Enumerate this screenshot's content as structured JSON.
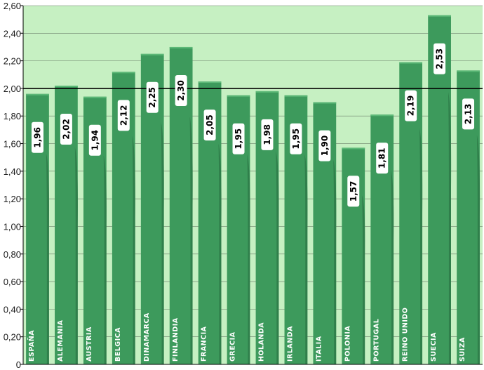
{
  "chart_data": {
    "type": "bar",
    "title": "",
    "xlabel": "",
    "ylabel": "",
    "categories": [
      "ESPAÑA",
      "ALEMANIA",
      "AUSTRIA",
      "BELGICA",
      "DINAMARCA",
      "FINLANDIA",
      "FRANCIA",
      "GRECIA",
      "HOLANDA",
      "IRLANDA",
      "ITALIA",
      "POLONIA",
      "PORTUGAL",
      "REINO UNIDO",
      "SUECIA",
      "SUIZA"
    ],
    "values": [
      1.96,
      2.02,
      1.94,
      2.12,
      2.25,
      2.3,
      2.05,
      1.95,
      1.98,
      1.95,
      1.9,
      1.57,
      1.81,
      2.19,
      2.53,
      2.13
    ],
    "value_labels": [
      "1,96",
      "2,02",
      "1,94",
      "2,12",
      "2,25",
      "2,30",
      "2,05",
      "1,95",
      "1,98",
      "1,95",
      "1,90",
      "1,57",
      "1,81",
      "2,19",
      "2,53",
      "2,13"
    ],
    "ylim": [
      0,
      2.6
    ],
    "yticks": [
      0,
      0.2,
      0.4,
      0.6,
      0.8,
      1.0,
      1.2,
      1.4,
      1.6,
      1.8,
      2.0,
      2.2,
      2.4,
      2.6
    ],
    "ytick_labels": [
      "0",
      "0,20",
      "0,40",
      "0,60",
      "0,80",
      "1,00",
      "1,20",
      "1,40",
      "1,60",
      "1,80",
      "2,00",
      "2,20",
      "2,40",
      "2,60"
    ],
    "reference_line": 2.0,
    "grid": true,
    "colors": {
      "plot_background": "#c6f0c2",
      "bar": "#3d9a5c",
      "bar_shadow": "#2e7a48",
      "bar_highlight": "#5cb877",
      "grid": "#1f1f1f",
      "label_box": "#ffffff"
    }
  }
}
